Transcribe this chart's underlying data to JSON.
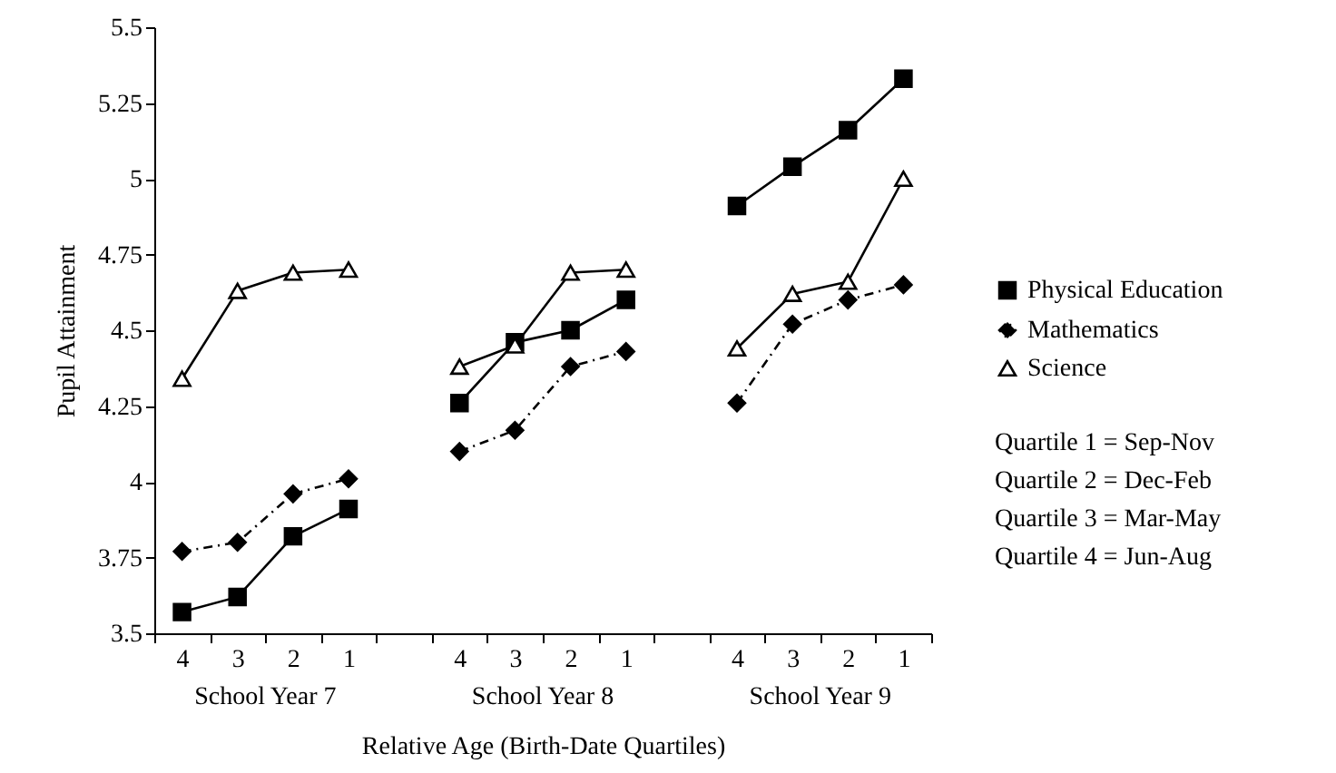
{
  "chart_data": {
    "type": "line",
    "xlabel": "Relative Age (Birth-Date Quartiles)",
    "ylabel": "Pupil Attainment",
    "categories": [
      "4",
      "3",
      "2",
      "1",
      null,
      "4",
      "3",
      "2",
      "1",
      null,
      "4",
      "3",
      "2",
      "1"
    ],
    "series": [
      {
        "name": "Physical Education",
        "color": "#000000",
        "marker": "square",
        "line_style": "solid",
        "values": [
          3.57,
          3.62,
          3.82,
          3.91,
          null,
          4.26,
          4.46,
          4.5,
          4.6,
          null,
          4.91,
          5.04,
          5.16,
          5.33
        ]
      },
      {
        "name": "Mathematics",
        "color": "#000000",
        "marker": "diamond",
        "line_style": "dashed",
        "values": [
          3.77,
          3.8,
          3.96,
          4.01,
          null,
          4.1,
          4.17,
          4.38,
          4.43,
          null,
          4.26,
          4.52,
          4.6,
          4.65
        ]
      },
      {
        "name": "Science",
        "color": "#000000",
        "marker": "triangle",
        "line_style": "solid",
        "values": [
          4.34,
          4.63,
          4.69,
          4.7,
          null,
          4.38,
          4.45,
          4.69,
          4.7,
          null,
          4.44,
          4.62,
          4.66,
          5.0
        ]
      }
    ],
    "ylim": [
      3.5,
      5.5
    ],
    "yticks": [
      3.5,
      3.75,
      4,
      4.25,
      4.5,
      4.75,
      5,
      5.25,
      5.5
    ],
    "legend": "right",
    "grid": false,
    "annotations": [
      "School Year 7",
      "School Year 8",
      "School Year 9",
      "Quartile 1 = Sep-Nov",
      "Quartile 2 = Dec-Feb",
      "Quartile 3 = Mar-May",
      "Quartile 4 = Jun-Aug"
    ]
  }
}
